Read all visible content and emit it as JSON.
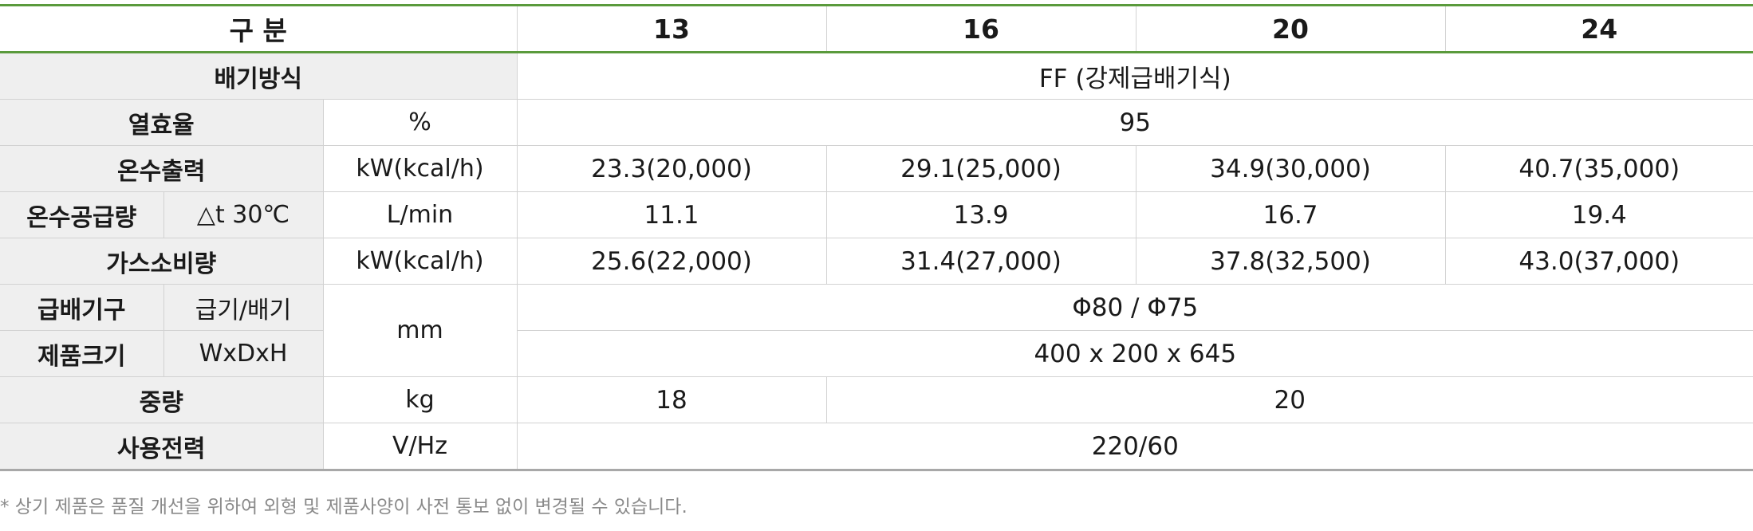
{
  "header": {
    "label": "구 분",
    "models": [
      "13",
      "16",
      "20",
      "24"
    ]
  },
  "rows": {
    "exhaust": {
      "label": "배기방식",
      "value": "FF (강제급배기식)"
    },
    "efficiency": {
      "label": "열효율",
      "unit": "%",
      "value": "95"
    },
    "heat_output": {
      "label": "온수출력",
      "unit": "kW(kcal/h)",
      "values": [
        "23.3(20,000)",
        "29.1(25,000)",
        "34.9(30,000)",
        "40.7(35,000)"
      ]
    },
    "hot_water_supply": {
      "label": "온수공급량",
      "sublabel": "△t 30℃",
      "unit": "L/min",
      "values": [
        "11.1",
        "13.9",
        "16.7",
        "19.4"
      ]
    },
    "gas_consumption": {
      "label": "가스소비량",
      "unit": "kW(kcal/h)",
      "values": [
        "25.6(22,000)",
        "31.4(27,000)",
        "37.8(32,500)",
        "43.0(37,000)"
      ]
    },
    "vent": {
      "label": "급배기구",
      "sublabel": "급기/배기",
      "value": "Φ80 / Φ75"
    },
    "size": {
      "label": "제품크기",
      "sublabel": "WxDxH",
      "value": "400 x 200 x 645"
    },
    "mm_unit": "mm",
    "weight": {
      "label": "중량",
      "unit": "kg",
      "values": [
        "18",
        "20"
      ]
    },
    "power": {
      "label": "사용전력",
      "unit": "V/Hz",
      "value": "220/60"
    }
  },
  "footnote": "* 상기 제품은 품질 개선을 위하여 외형 및 제품사양이 사전 통보 없이 변경될 수 있습니다."
}
